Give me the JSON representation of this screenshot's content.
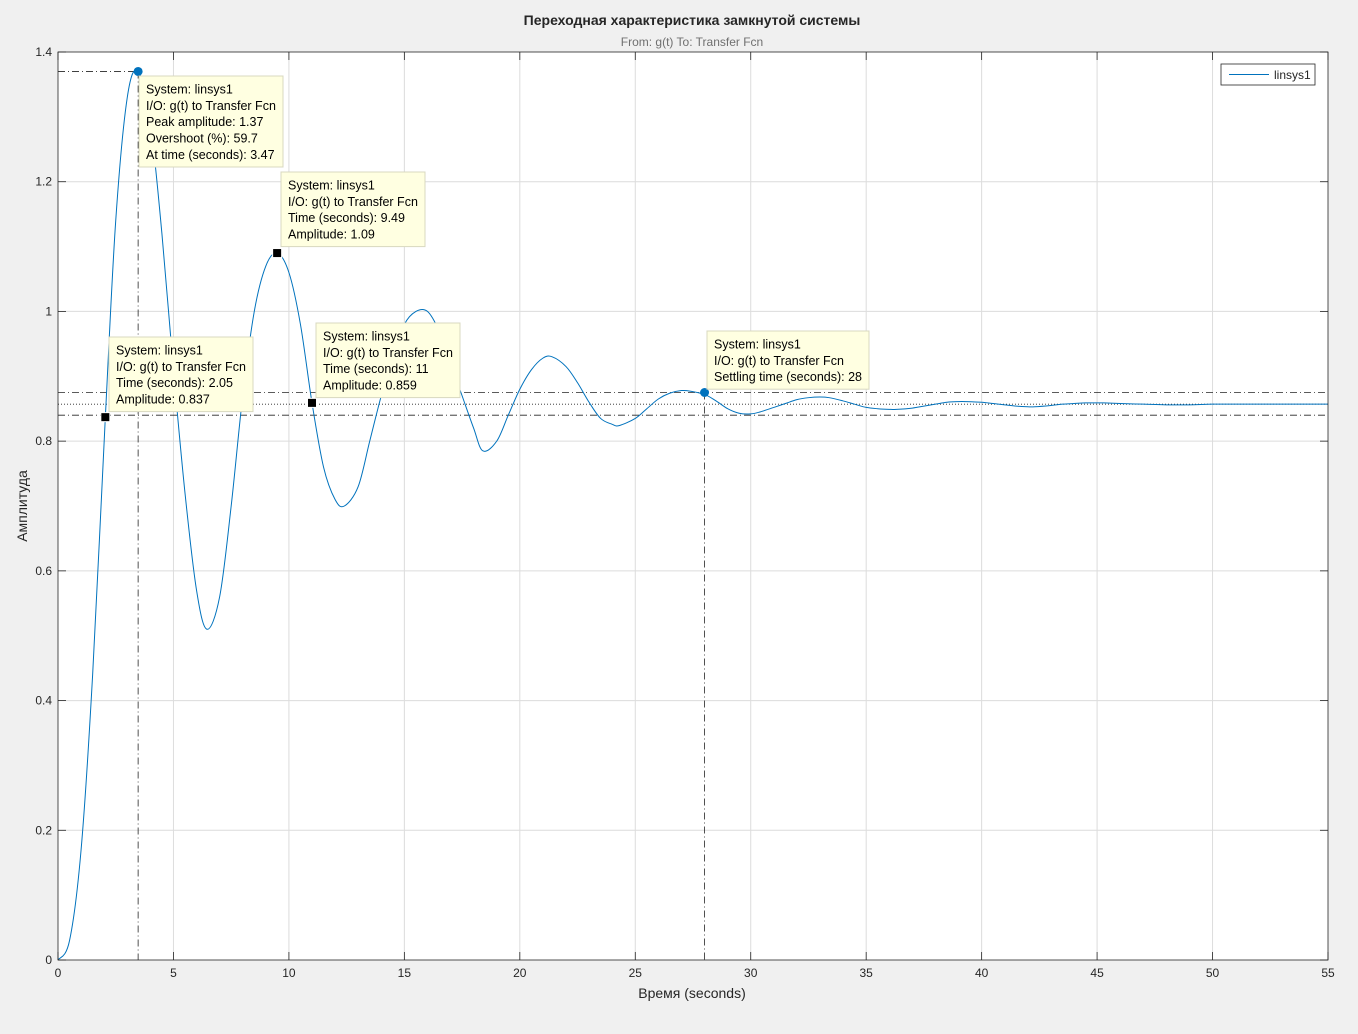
{
  "chart_data": {
    "type": "line",
    "title": "Переходная характеристика замкнутой системы",
    "subtitle": "From: g(t)  To: Transfer Fcn",
    "xlabel": "Время (seconds)",
    "ylabel": "Амплитуда",
    "xlim": [
      0,
      55
    ],
    "ylim": [
      0,
      1.4
    ],
    "xticks": [
      0,
      5,
      10,
      15,
      20,
      25,
      30,
      35,
      40,
      45,
      50,
      55
    ],
    "yticks": [
      0,
      0.2,
      0.4,
      0.6,
      0.8,
      1,
      1.2,
      1.4
    ],
    "grid": true,
    "legend_position": "top-right",
    "series": [
      {
        "name": "linsys1",
        "color": "#0072bd",
        "x": [
          0,
          0.5,
          1,
          1.5,
          2.05,
          2.5,
          3,
          3.47,
          4,
          4.5,
          5,
          5.5,
          6,
          6.45,
          7,
          7.5,
          8,
          8.5,
          9,
          9.49,
          10,
          10.5,
          11,
          11.5,
          12,
          12.4,
          13,
          13.5,
          14,
          14.5,
          15,
          15.5,
          16,
          16.5,
          17,
          17.5,
          18,
          18.4,
          19,
          19.5,
          20,
          20.5,
          21,
          21.4,
          22,
          22.5,
          23,
          23.5,
          24,
          24.3,
          25,
          25.5,
          26,
          26.5,
          27,
          27.4,
          28,
          28.5,
          29,
          29.5,
          30,
          30.4,
          31,
          31.5,
          32,
          32.5,
          33,
          33.4,
          34,
          34.5,
          35,
          35.5,
          36,
          36.3,
          37,
          37.5,
          38,
          38.5,
          39,
          39.3,
          40,
          40.5,
          41,
          41.5,
          42,
          42.3,
          43,
          43.5,
          44,
          44.5,
          45,
          45.3,
          46,
          47,
          48,
          49,
          50,
          51,
          52,
          53,
          54,
          55
        ],
        "y": [
          0,
          0.03,
          0.17,
          0.44,
          0.837,
          1.14,
          1.33,
          1.37,
          1.29,
          1.12,
          0.91,
          0.72,
          0.57,
          0.51,
          0.56,
          0.7,
          0.87,
          1.0,
          1.07,
          1.09,
          1.06,
          0.98,
          0.859,
          0.76,
          0.71,
          0.7,
          0.73,
          0.8,
          0.87,
          0.93,
          0.98,
          1.0,
          1.0,
          0.97,
          0.92,
          0.87,
          0.82,
          0.785,
          0.8,
          0.84,
          0.88,
          0.91,
          0.928,
          0.93,
          0.915,
          0.89,
          0.86,
          0.835,
          0.826,
          0.824,
          0.835,
          0.85,
          0.865,
          0.874,
          0.878,
          0.877,
          0.872,
          0.862,
          0.85,
          0.843,
          0.842,
          0.845,
          0.852,
          0.858,
          0.864,
          0.867,
          0.868,
          0.867,
          0.862,
          0.857,
          0.852,
          0.85,
          0.849,
          0.849,
          0.851,
          0.854,
          0.857,
          0.86,
          0.861,
          0.861,
          0.86,
          0.858,
          0.856,
          0.854,
          0.853,
          0.853,
          0.855,
          0.857,
          0.858,
          0.859,
          0.859,
          0.859,
          0.858,
          0.857,
          0.856,
          0.856,
          0.857,
          0.857,
          0.857,
          0.857,
          0.857,
          0.857
        ]
      }
    ],
    "characteristic_lines": {
      "peak": {
        "x": 3.47,
        "y": 1.37
      },
      "settling_band": [
        0.84,
        0.875
      ],
      "settling_time": {
        "x": 28,
        "y": 0.875
      },
      "final_value": 0.857
    },
    "markers": [
      {
        "kind": "circle",
        "x": 3.47,
        "y": 1.37
      },
      {
        "kind": "circle",
        "x": 28,
        "y": 0.875
      },
      {
        "kind": "square",
        "x": 2.05,
        "y": 0.837
      },
      {
        "kind": "square",
        "x": 9.49,
        "y": 1.09
      },
      {
        "kind": "square",
        "x": 11,
        "y": 0.859
      }
    ],
    "datatips": [
      {
        "anchor": "peak",
        "lines": [
          "System: linsys1",
          "I/O: g(t) to Transfer Fcn",
          "Peak amplitude: 1.37",
          "Overshoot (%): 59.7",
          "At time (seconds): 3.47"
        ]
      },
      {
        "anchor": "second-peak",
        "lines": [
          "System: linsys1",
          "I/O: g(t) to Transfer Fcn",
          "Time (seconds): 9.49",
          "Amplitude: 1.09"
        ]
      },
      {
        "anchor": "rise-point",
        "lines": [
          "System: linsys1",
          "I/O: g(t) to Transfer Fcn",
          "Time (seconds): 2.05",
          "Amplitude: 0.837"
        ]
      },
      {
        "anchor": "crossing",
        "lines": [
          "System: linsys1",
          "I/O: g(t) to Transfer Fcn",
          "Time (seconds): 11",
          "Amplitude: 0.859"
        ]
      },
      {
        "anchor": "settling",
        "lines": [
          "System: linsys1",
          "I/O: g(t) to Transfer Fcn",
          "Settling time (seconds): 28"
        ]
      }
    ]
  }
}
